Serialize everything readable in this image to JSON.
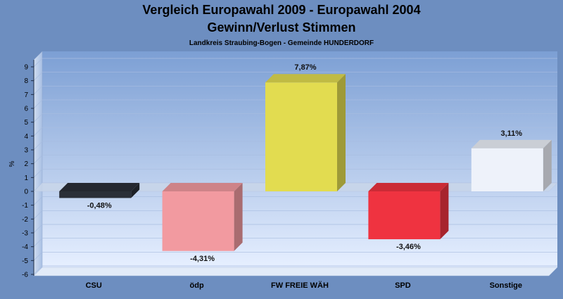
{
  "chart_data": {
    "type": "bar",
    "title": "Vergleich Europawahl 2009 - Europawahl 2004",
    "subtitle_line2": "Gewinn/Verlust Stimmen",
    "subtitle": "Landkreis Straubing-Bogen - Gemeinde HUNDERDORF",
    "ylabel": "%",
    "xlabel": "",
    "ylim": [
      -6,
      9
    ],
    "yticks": [
      9,
      8,
      7,
      6,
      5,
      4,
      3,
      2,
      1,
      0,
      -1,
      -2,
      -3,
      -4,
      -5,
      -6
    ],
    "grid": true,
    "categories": [
      "CSU",
      "ödp",
      "FW FREIE WÄH",
      "SPD",
      "Sonstige"
    ],
    "values": [
      -0.48,
      -4.31,
      7.87,
      -3.46,
      3.11
    ],
    "value_labels": [
      "-0,48%",
      "-4,31%",
      "7,87%",
      "-3,46%",
      "3,11%"
    ],
    "colors": [
      "#2b2f38",
      "#f29aa0",
      "#e2dc50",
      "#ef3340",
      "#eef2fa"
    ],
    "background_color": "#6d8ec0"
  }
}
